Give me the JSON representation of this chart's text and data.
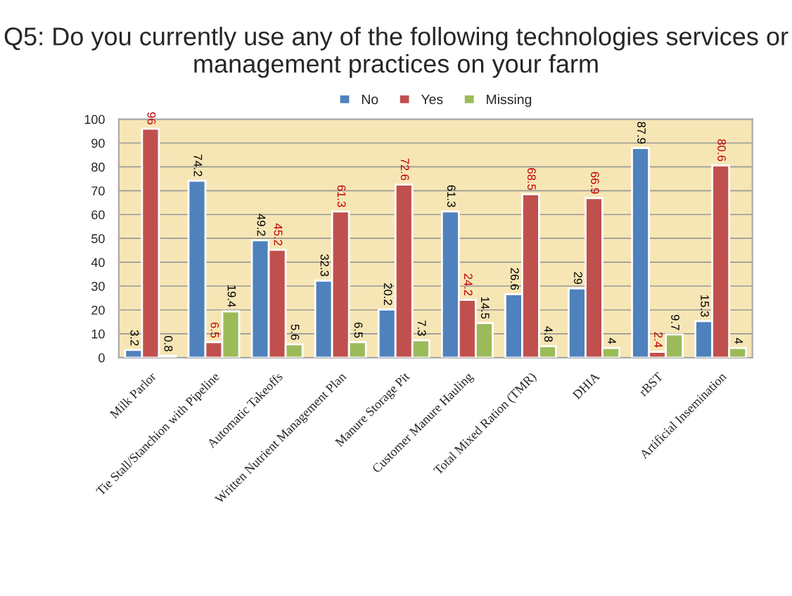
{
  "chart_data": {
    "type": "bar",
    "title": "Q5: Do you currently use any of the following technologies services or management practices on your farm",
    "categories": [
      "Milk Parlor",
      "Tie Stall/Stanchion with Pipeline",
      "Automatic Takeoffs",
      "Written Nutrient Management Plan",
      "Manure Storage Pit",
      "Customer Manure Hauling",
      "Total Mixed Ration (TMR)",
      "DHIA",
      "rBST",
      "Artificial Insemination"
    ],
    "series": [
      {
        "name": "No",
        "color": "#4f81bd",
        "values": [
          3.2,
          74.2,
          49.2,
          32.3,
          20.2,
          61.3,
          26.6,
          29,
          87.9,
          15.3
        ]
      },
      {
        "name": "Yes",
        "color": "#c0504d",
        "values": [
          96,
          6.5,
          45.2,
          61.3,
          72.6,
          24.2,
          68.5,
          66.9,
          2.4,
          80.6
        ]
      },
      {
        "name": "Missing",
        "color": "#9bbb59",
        "values": [
          0.8,
          19.4,
          5.6,
          6.5,
          7.3,
          14.5,
          4.8,
          4,
          9.7,
          4
        ]
      }
    ],
    "ylim": [
      0,
      100
    ],
    "yticks": [
      0,
      10,
      20,
      30,
      40,
      50,
      60,
      70,
      80,
      90,
      100
    ],
    "grid": "y",
    "legend": "top",
    "data_labels": true
  }
}
